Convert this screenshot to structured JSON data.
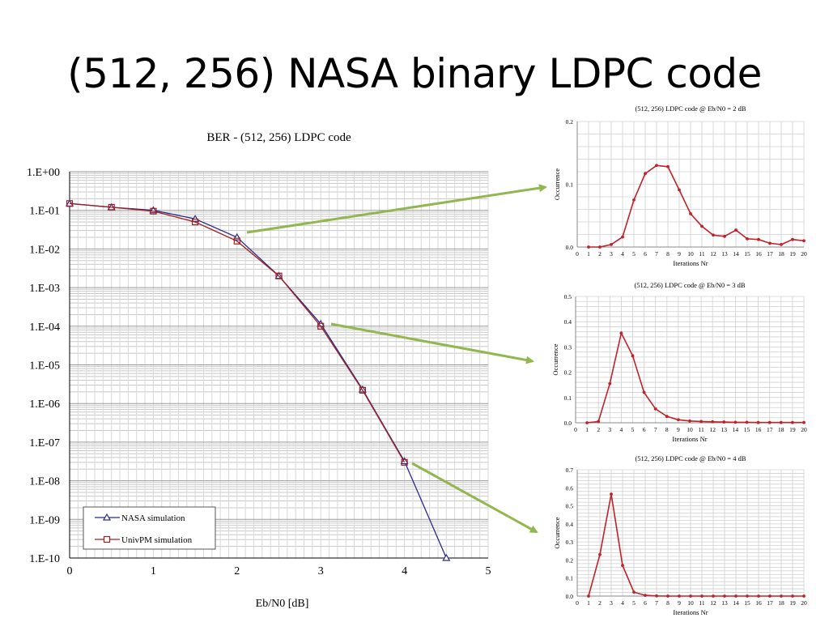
{
  "slide": {
    "title": "(512, 256) NASA binary LDPC code"
  },
  "colors": {
    "nasa": "#2a2a8e",
    "univpm": "#a02020",
    "arrow": "#92b650",
    "dist": "#c0222a"
  },
  "chart_data": [
    {
      "type": "line",
      "title": "BER - (512, 256) LDPC code",
      "xlabel": "Eb/N0 [dB]",
      "ylabel": "",
      "xlim": [
        0,
        5
      ],
      "ylim": [
        1e-10,
        1
      ],
      "yscale": "log",
      "x_ticks": [
        "0",
        "1",
        "2",
        "3",
        "4",
        "5"
      ],
      "y_ticks": [
        "1.E+00",
        "1.E-01",
        "1.E-02",
        "1.E-03",
        "1.E-04",
        "1.E-05",
        "1.E-06",
        "1.E-07",
        "1.E-08",
        "1.E-09",
        "1.E-10"
      ],
      "grid": true,
      "legend_position": "bottom-left",
      "series": [
        {
          "name": "NASA simulation",
          "marker": "triangle",
          "x": [
            0,
            0.5,
            1,
            1.5,
            2,
            2.5,
            3,
            3.5,
            4,
            4.5
          ],
          "y": [
            0.15,
            0.12,
            0.1,
            0.06,
            0.02,
            0.002,
            0.000115,
            2.3e-06,
            3.2e-08,
            1e-10
          ]
        },
        {
          "name": "UnivPM simulation",
          "marker": "square",
          "x": [
            0,
            0.5,
            1,
            1.5,
            2,
            2.5,
            3,
            3.5,
            4
          ],
          "y": [
            0.15,
            0.12,
            0.095,
            0.05,
            0.016,
            0.002,
            0.0001,
            2.2e-06,
            3e-08
          ]
        }
      ]
    },
    {
      "type": "line",
      "title": "(512, 256) LDPC code @ Eb/N0 = 2 dB",
      "xlabel": "Iterations Nr",
      "ylabel": "Occurrence",
      "xlim": [
        0,
        20
      ],
      "ylim": [
        0,
        0.2
      ],
      "y_ticks": [
        "0.0",
        "0.1",
        "0.2"
      ],
      "x_ticks": [
        "0",
        "1",
        "2",
        "3",
        "4",
        "5",
        "6",
        "7",
        "8",
        "9",
        "10",
        "11",
        "12",
        "13",
        "14",
        "15",
        "16",
        "17",
        "18",
        "19",
        "20"
      ],
      "grid": true,
      "x": [
        1,
        2,
        3,
        4,
        5,
        6,
        7,
        8,
        9,
        10,
        11,
        12,
        13,
        14,
        15,
        16,
        17,
        18,
        19,
        20
      ],
      "y": [
        0.0,
        0.0,
        0.004,
        0.016,
        0.075,
        0.117,
        0.13,
        0.128,
        0.091,
        0.053,
        0.033,
        0.019,
        0.017,
        0.027,
        0.013,
        0.012,
        0.006,
        0.004,
        0.012,
        0.01
      ]
    },
    {
      "type": "line",
      "title": "(512, 256) LDPC code @ Eb/N0 = 3 dB",
      "xlabel": "Iterations Nr",
      "ylabel": "Occurrence",
      "xlim": [
        0,
        20
      ],
      "ylim": [
        0,
        0.5
      ],
      "y_ticks": [
        "0.0",
        "0.1",
        "0.2",
        "0.3",
        "0.4",
        "0.5"
      ],
      "x_ticks": [
        "0",
        "1",
        "2",
        "3",
        "4",
        "5",
        "6",
        "7",
        "8",
        "9",
        "10",
        "11",
        "12",
        "13",
        "14",
        "15",
        "16",
        "17",
        "18",
        "19",
        "20"
      ],
      "grid": true,
      "x": [
        1,
        2,
        3,
        4,
        5,
        6,
        7,
        8,
        9,
        10,
        11,
        12,
        13,
        14,
        15,
        16,
        17,
        18,
        19,
        20
      ],
      "y": [
        0.0,
        0.005,
        0.155,
        0.355,
        0.265,
        0.12,
        0.055,
        0.025,
        0.012,
        0.007,
        0.005,
        0.004,
        0.003,
        0.002,
        0.002,
        0.001,
        0.001,
        0.001,
        0.001,
        0.001
      ]
    },
    {
      "type": "line",
      "title": "(512, 256) LDPC code @ Eb/N0 = 4 dB",
      "xlabel": "Iterations Nr",
      "ylabel": "Occurrence",
      "xlim": [
        0,
        20
      ],
      "ylim": [
        0,
        0.7
      ],
      "y_ticks": [
        "0.0",
        "0.1",
        "0.2",
        "0.3",
        "0.4",
        "0.5",
        "0.6",
        "0.7"
      ],
      "x_ticks": [
        "0",
        "1",
        "2",
        "3",
        "4",
        "5",
        "6",
        "7",
        "8",
        "9",
        "10",
        "11",
        "12",
        "13",
        "14",
        "15",
        "16",
        "17",
        "18",
        "19",
        "20"
      ],
      "grid": true,
      "x": [
        1,
        2,
        3,
        4,
        5,
        6,
        7,
        8,
        9,
        10,
        11,
        12,
        13,
        14,
        15,
        16,
        17,
        18,
        19,
        20
      ],
      "y": [
        0.0,
        0.23,
        0.565,
        0.17,
        0.022,
        0.004,
        0.001,
        0.0,
        0.0,
        0.0,
        0.0,
        0.0,
        0.0,
        0.0,
        0.0,
        0.0,
        0.0,
        0.0,
        0.0,
        0.0
      ]
    }
  ]
}
